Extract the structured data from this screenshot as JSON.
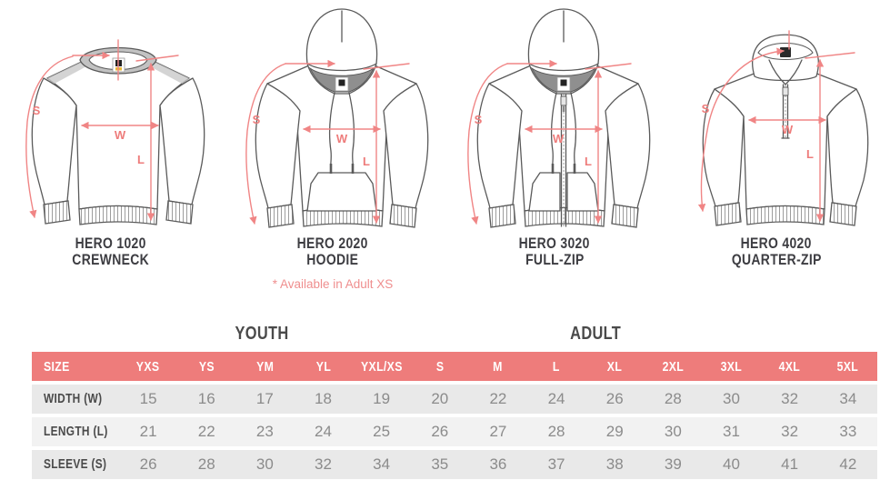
{
  "page_title": "Apparel size chart",
  "colors": {
    "accent_pink": "#ee7c7b",
    "arrow_pink": "#f08585",
    "note_pink": "#ef8e8e",
    "line_gray": "#5a5a5a",
    "row_gray": "#e9e9e9",
    "row_gray_alt": "#f2f2f2"
  },
  "measure_labels": {
    "sleeve": "S",
    "width": "W",
    "length": "L"
  },
  "garments": [
    {
      "model": "HERO 1020",
      "type": "CREWNECK",
      "note": ""
    },
    {
      "model": "HERO 2020",
      "type": "HOODIE",
      "note": "* Available in Adult XS"
    },
    {
      "model": "HERO 3020",
      "type": "FULL-ZIP",
      "note": ""
    },
    {
      "model": "HERO 4020",
      "type": "QUARTER-ZIP",
      "note": ""
    }
  ],
  "sections": {
    "youth": "YOUTH",
    "adult": "ADULT"
  },
  "chart_data": {
    "type": "table",
    "header": [
      "SIZE",
      "YXS",
      "YS",
      "YM",
      "YL",
      "YXL/XS",
      "S",
      "M",
      "L",
      "XL",
      "2XL",
      "3XL",
      "4XL",
      "5XL"
    ],
    "rows": [
      {
        "label": "WIDTH (W)",
        "values": [
          15,
          16,
          17,
          18,
          19,
          20,
          22,
          24,
          26,
          28,
          30,
          32,
          34
        ]
      },
      {
        "label": "LENGTH (L)",
        "values": [
          21,
          22,
          23,
          24,
          25,
          26,
          27,
          28,
          29,
          30,
          31,
          32,
          33
        ]
      },
      {
        "label": "SLEEVE (S)",
        "values": [
          26,
          28,
          30,
          32,
          34,
          35,
          36,
          37,
          38,
          39,
          40,
          41,
          42
        ]
      }
    ]
  }
}
